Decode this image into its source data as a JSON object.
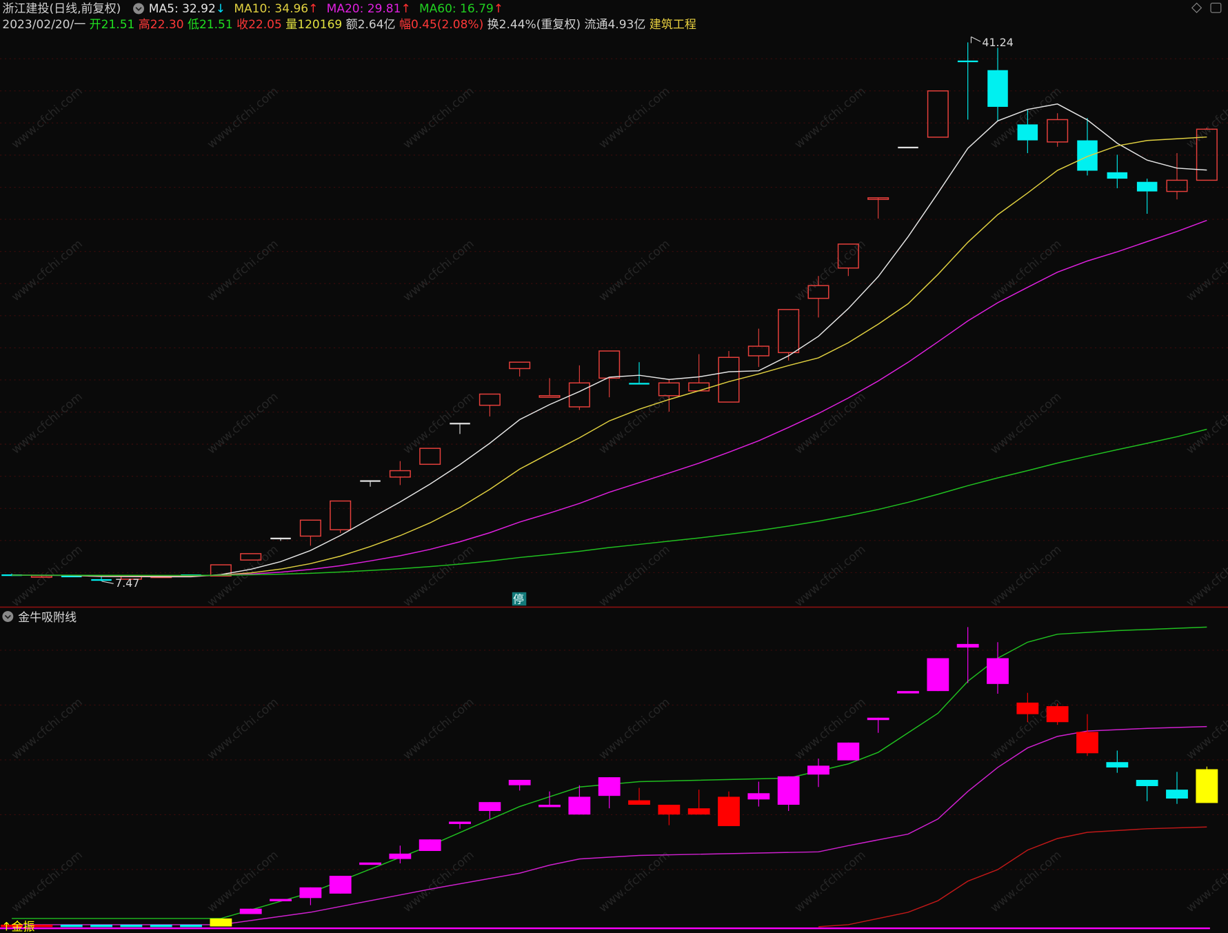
{
  "header": {
    "stock_title": "浙江建投(日线,前复权)",
    "ma5": "MA5: 32.92",
    "ma5_arrow": "↓",
    "ma10": "MA10: 34.96",
    "ma10_arrow": "↑",
    "ma20": "MA20: 29.81",
    "ma20_arrow": "↑",
    "ma60": "MA60: 16.79",
    "ma60_arrow": "↑",
    "date": "2023/02/20/一",
    "open": "开21.51",
    "high": "高22.30",
    "low": "低21.51",
    "close": "收22.05",
    "volume": "量120169",
    "amount": "额2.64亿",
    "change": "幅0.45(2.08%)",
    "turnover": "换2.44%(重复权)",
    "float": "流通4.93亿",
    "sector": "建筑工程"
  },
  "colors": {
    "up": "#e8403c",
    "down": "#00f0f0",
    "limit": "#e0e0e0",
    "ma5": "#e6e6e6",
    "ma10": "#e0d040",
    "ma20": "#e020e0",
    "ma60": "#20c020",
    "lower_up": "#ff00ff",
    "lower_down": "#ff0000",
    "lower_cyan": "#00f0f0",
    "lower_yellow": "#ffff00",
    "lower_line1": "#20c020",
    "lower_line2": "#d020d0",
    "lower_line3": "#c01818"
  },
  "main_panel": {
    "max_label": "41.24",
    "min_label": "7.47",
    "halt_label": "停",
    "watermark": "www.cfchi.com",
    "candles": [
      {
        "o": 7.9,
        "h": 7.95,
        "l": 7.8,
        "c": 7.85,
        "k": "d"
      },
      {
        "o": 7.8,
        "h": 7.85,
        "l": 7.75,
        "c": 7.82,
        "k": "u"
      },
      {
        "o": 7.82,
        "h": 7.85,
        "l": 7.75,
        "c": 7.8,
        "k": "d"
      },
      {
        "o": 7.6,
        "h": 7.8,
        "l": 7.47,
        "c": 7.55,
        "k": "d"
      },
      {
        "o": 7.6,
        "h": 7.8,
        "l": 7.55,
        "c": 7.8,
        "k": "u"
      },
      {
        "o": 7.8,
        "h": 7.85,
        "l": 7.75,
        "c": 7.8,
        "k": "u"
      },
      {
        "o": 7.9,
        "h": 7.9,
        "l": 7.8,
        "c": 7.8,
        "k": "d"
      },
      {
        "o": 7.8,
        "h": 8.5,
        "l": 7.8,
        "c": 8.5,
        "k": "u"
      },
      {
        "o": 8.8,
        "h": 9.2,
        "l": 8.8,
        "c": 9.2,
        "k": "u"
      },
      {
        "o": 10.2,
        "h": 10.2,
        "l": 10.0,
        "c": 10.2,
        "k": "l"
      },
      {
        "o": 10.3,
        "h": 11.3,
        "l": 9.7,
        "c": 11.3,
        "k": "u"
      },
      {
        "o": 10.7,
        "h": 12.5,
        "l": 10.5,
        "c": 12.5,
        "k": "u"
      },
      {
        "o": 13.8,
        "h": 13.8,
        "l": 13.4,
        "c": 13.8,
        "k": "l"
      },
      {
        "o": 14.0,
        "h": 15.0,
        "l": 13.5,
        "c": 14.4,
        "k": "u"
      },
      {
        "o": 14.8,
        "h": 15.8,
        "l": 14.8,
        "c": 15.8,
        "k": "u"
      },
      {
        "o": 17.4,
        "h": 17.4,
        "l": 16.7,
        "c": 17.4,
        "k": "l"
      },
      {
        "o": 18.5,
        "h": 19.2,
        "l": 17.8,
        "c": 19.2,
        "k": "u"
      },
      {
        "o": 20.8,
        "h": 21.2,
        "l": 20.3,
        "c": 21.2,
        "k": "u"
      },
      {
        "o": 19.1,
        "h": 20.2,
        "l": 19.1,
        "c": 19.1,
        "k": "u"
      },
      {
        "o": 18.4,
        "h": 21.0,
        "l": 18.2,
        "c": 19.9,
        "k": "u"
      },
      {
        "o": 20.2,
        "h": 21.9,
        "l": 19.0,
        "c": 21.9,
        "k": "u"
      },
      {
        "o": 19.9,
        "h": 21.2,
        "l": 19.8,
        "c": 19.8,
        "k": "d"
      },
      {
        "o": 19.1,
        "h": 20.1,
        "l": 18.1,
        "c": 19.9,
        "k": "u"
      },
      {
        "o": 19.4,
        "h": 21.7,
        "l": 19.4,
        "c": 19.9,
        "k": "u"
      },
      {
        "o": 18.7,
        "h": 21.9,
        "l": 18.7,
        "c": 21.5,
        "k": "u"
      },
      {
        "o": 21.6,
        "h": 23.3,
        "l": 20.9,
        "c": 22.2,
        "k": "u"
      },
      {
        "o": 21.8,
        "h": 24.5,
        "l": 21.3,
        "c": 24.5,
        "k": "u"
      },
      {
        "o": 25.2,
        "h": 26.6,
        "l": 24.0,
        "c": 26.0,
        "k": "u"
      },
      {
        "o": 27.1,
        "h": 28.6,
        "l": 26.6,
        "c": 28.6,
        "k": "u"
      },
      {
        "o": 31.5,
        "h": 31.5,
        "l": 30.2,
        "c": 31.5,
        "k": "u"
      },
      {
        "o": 34.7,
        "h": 34.7,
        "l": 34.7,
        "c": 34.7,
        "k": "l"
      },
      {
        "o": 35.3,
        "h": 38.2,
        "l": 35.3,
        "c": 38.2,
        "k": "u"
      },
      {
        "o": 40.1,
        "h": 41.24,
        "l": 36.4,
        "c": 40.0,
        "k": "d"
      },
      {
        "o": 39.5,
        "h": 40.9,
        "l": 36.3,
        "c": 37.2,
        "k": "d"
      },
      {
        "o": 36.1,
        "h": 37.0,
        "l": 34.3,
        "c": 35.1,
        "k": "d"
      },
      {
        "o": 35.0,
        "h": 36.8,
        "l": 34.7,
        "c": 36.4,
        "k": "u"
      },
      {
        "o": 35.1,
        "h": 36.5,
        "l": 32.9,
        "c": 33.2,
        "k": "d"
      },
      {
        "o": 33.1,
        "h": 34.2,
        "l": 32.1,
        "c": 32.7,
        "k": "d"
      },
      {
        "o": 32.5,
        "h": 32.7,
        "l": 30.5,
        "c": 31.9,
        "k": "d"
      },
      {
        "o": 31.9,
        "h": 34.3,
        "l": 31.4,
        "c": 32.6,
        "k": "u"
      },
      {
        "o": 32.6,
        "h": 35.9,
        "l": 32.6,
        "c": 35.8,
        "k": "u"
      }
    ]
  },
  "indicator_panel": {
    "title": "金牛吸附线",
    "signal_label": "↑金振",
    "candles": [
      {
        "o": 7.7,
        "h": 7.7,
        "l": 7.5,
        "c": 7.6,
        "k": "r"
      },
      {
        "o": 7.7,
        "h": 7.7,
        "l": 7.5,
        "c": 7.6,
        "k": "r"
      },
      {
        "o": 7.6,
        "h": 7.7,
        "l": 7.5,
        "c": 7.7,
        "k": "c"
      },
      {
        "o": 7.6,
        "h": 7.7,
        "l": 7.47,
        "c": 7.7,
        "k": "c"
      },
      {
        "o": 7.6,
        "h": 7.7,
        "l": 7.5,
        "c": 7.7,
        "k": "c"
      },
      {
        "o": 7.6,
        "h": 7.7,
        "l": 7.5,
        "c": 7.7,
        "k": "c"
      },
      {
        "o": 7.6,
        "h": 7.7,
        "l": 7.5,
        "c": 7.7,
        "k": "c"
      },
      {
        "o": 7.5,
        "h": 8.4,
        "l": 7.5,
        "c": 8.4,
        "k": "y"
      },
      {
        "o": 8.9,
        "h": 9.5,
        "l": 8.9,
        "c": 9.5,
        "k": "m"
      },
      {
        "o": 10.6,
        "h": 10.6,
        "l": 10.6,
        "c": 10.6,
        "k": "m"
      },
      {
        "o": 10.7,
        "h": 11.9,
        "l": 9.9,
        "c": 11.9,
        "k": "m"
      },
      {
        "o": 11.2,
        "h": 13.2,
        "l": 11.2,
        "c": 13.2,
        "k": "m"
      },
      {
        "o": 14.7,
        "h": 14.7,
        "l": 14.7,
        "c": 14.7,
        "k": "m"
      },
      {
        "o": 15.1,
        "h": 16.6,
        "l": 14.6,
        "c": 15.7,
        "k": "m"
      },
      {
        "o": 16.0,
        "h": 17.3,
        "l": 16.0,
        "c": 17.3,
        "k": "m"
      },
      {
        "o": 19.3,
        "h": 19.3,
        "l": 18.5,
        "c": 19.3,
        "k": "m"
      },
      {
        "o": 20.5,
        "h": 21.5,
        "l": 19.6,
        "c": 21.5,
        "k": "m"
      },
      {
        "o": 23.4,
        "h": 24.0,
        "l": 22.8,
        "c": 24.0,
        "k": "m"
      },
      {
        "o": 21.2,
        "h": 22.7,
        "l": 21.2,
        "c": 21.2,
        "k": "m"
      },
      {
        "o": 20.1,
        "h": 23.4,
        "l": 20.1,
        "c": 22.1,
        "k": "m"
      },
      {
        "o": 22.2,
        "h": 24.3,
        "l": 20.8,
        "c": 24.3,
        "k": "m"
      },
      {
        "o": 21.7,
        "h": 23.1,
        "l": 21.2,
        "c": 21.2,
        "k": "r"
      },
      {
        "o": 21.2,
        "h": 21.2,
        "l": 18.9,
        "c": 20.1,
        "k": "r"
      },
      {
        "o": 20.8,
        "h": 22.9,
        "l": 20.1,
        "c": 20.1,
        "k": "r"
      },
      {
        "o": 22.1,
        "h": 22.7,
        "l": 18.8,
        "c": 18.8,
        "k": "r"
      },
      {
        "o": 21.8,
        "h": 23.8,
        "l": 21.0,
        "c": 22.5,
        "k": "m"
      },
      {
        "o": 21.2,
        "h": 24.4,
        "l": 20.5,
        "c": 24.4,
        "k": "m"
      },
      {
        "o": 24.6,
        "h": 26.4,
        "l": 23.2,
        "c": 25.6,
        "k": "m"
      },
      {
        "o": 26.2,
        "h": 28.2,
        "l": 26.2,
        "c": 28.2,
        "k": "m"
      },
      {
        "o": 31.0,
        "h": 31.0,
        "l": 29.3,
        "c": 31.0,
        "k": "m"
      },
      {
        "o": 34.0,
        "h": 34.0,
        "l": 34.0,
        "c": 34.0,
        "k": "m"
      },
      {
        "o": 34.0,
        "h": 37.7,
        "l": 34.0,
        "c": 37.7,
        "k": "m"
      },
      {
        "o": 39.3,
        "h": 41.2,
        "l": 34.9,
        "c": 38.9,
        "k": "m"
      },
      {
        "o": 37.7,
        "h": 39.5,
        "l": 33.7,
        "c": 34.8,
        "k": "m"
      },
      {
        "o": 32.7,
        "h": 33.8,
        "l": 30.5,
        "c": 31.4,
        "k": "r"
      },
      {
        "o": 32.3,
        "h": 32.6,
        "l": 30.2,
        "c": 30.5,
        "k": "r"
      },
      {
        "o": 29.4,
        "h": 31.4,
        "l": 26.7,
        "c": 27.0,
        "k": "r"
      },
      {
        "o": 26.0,
        "h": 27.3,
        "l": 24.8,
        "c": 25.4,
        "k": "c"
      },
      {
        "o": 24.0,
        "h": 24.0,
        "l": 21.6,
        "c": 23.3,
        "k": "c"
      },
      {
        "o": 22.9,
        "h": 24.9,
        "l": 21.3,
        "c": 21.9,
        "k": "c"
      },
      {
        "o": 21.4,
        "h": 25.5,
        "l": 21.4,
        "c": 25.2,
        "k": "y"
      }
    ],
    "lines": [
      {
        "key": "lower_line1",
        "points": [
          [
            0,
            8.4
          ],
          [
            7,
            8.4
          ],
          [
            10,
            11.3
          ],
          [
            14,
            16.6
          ],
          [
            17,
            21.0
          ],
          [
            19,
            23.2
          ],
          [
            21,
            23.8
          ],
          [
            26,
            24.2
          ],
          [
            28,
            25.8
          ],
          [
            29,
            27.1
          ],
          [
            31,
            31.5
          ],
          [
            32,
            35.1
          ],
          [
            33,
            37.7
          ],
          [
            34,
            39.5
          ],
          [
            35,
            40.4
          ],
          [
            37,
            40.8
          ],
          [
            40,
            41.2
          ]
        ]
      },
      {
        "key": "lower_line2",
        "points": [
          [
            0,
            7.7
          ],
          [
            7,
            7.7
          ],
          [
            10,
            9.1
          ],
          [
            14,
            11.7
          ],
          [
            17,
            13.5
          ],
          [
            18,
            14.4
          ],
          [
            19,
            15.1
          ],
          [
            21,
            15.5
          ],
          [
            27,
            15.9
          ],
          [
            28,
            16.6
          ],
          [
            30,
            17.9
          ],
          [
            31,
            19.6
          ],
          [
            32,
            22.7
          ],
          [
            33,
            25.4
          ],
          [
            34,
            27.6
          ],
          [
            35,
            28.9
          ],
          [
            36,
            29.5
          ],
          [
            38,
            29.8
          ],
          [
            40,
            30.0
          ]
        ]
      },
      {
        "key": "lower_line3",
        "points": [
          [
            27,
            7.47
          ],
          [
            28,
            7.7
          ],
          [
            30,
            9.1
          ],
          [
            31,
            10.4
          ],
          [
            32,
            12.6
          ],
          [
            33,
            13.9
          ],
          [
            34,
            16.1
          ],
          [
            35,
            17.4
          ],
          [
            36,
            18.1
          ],
          [
            38,
            18.5
          ],
          [
            40,
            18.7
          ]
        ]
      }
    ]
  }
}
